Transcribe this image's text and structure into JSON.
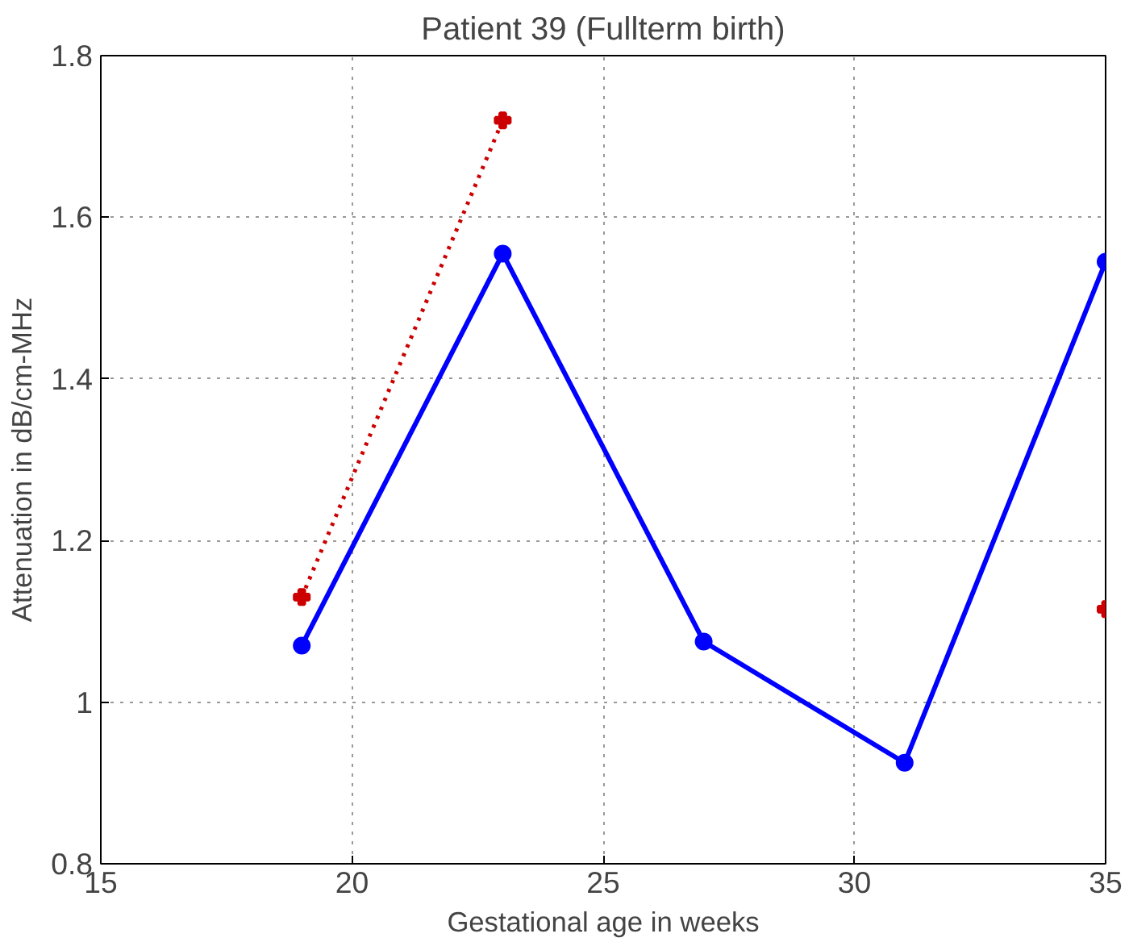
{
  "chart_data": {
    "type": "line",
    "title": "Patient 39 (Fullterm birth)",
    "xlabel": "Gestational age in weeks",
    "ylabel": "Attenuation in dB/cm-MHz",
    "x": [
      19,
      23,
      27,
      31,
      35
    ],
    "series": [
      {
        "color": "#0000ff",
        "values": [
          1.07,
          1.555,
          1.075,
          0.925,
          1.545
        ],
        "marker": "circle",
        "line_style": "solid"
      },
      {
        "color": "#cc0000",
        "values": [
          1.13,
          1.72,
          null,
          null,
          1.115
        ],
        "marker": "cross",
        "line_style": "dotted"
      }
    ],
    "xlim": [
      15,
      35
    ],
    "ylim": [
      0.8,
      1.8
    ],
    "xticks": [
      15,
      20,
      25,
      30,
      35
    ],
    "yticks": [
      0.8,
      1,
      1.2,
      1.4,
      1.6,
      1.8
    ],
    "grid": true
  }
}
